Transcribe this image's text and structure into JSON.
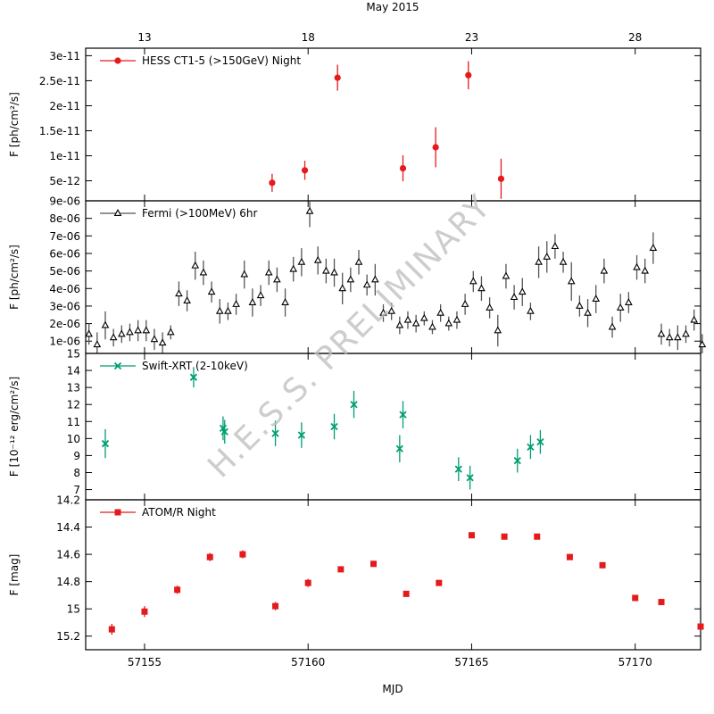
{
  "figure": {
    "top_title": "May 2015",
    "xlabel": "MJD",
    "x_range": [
      57153.2,
      57172.0
    ],
    "date_ticks": [
      {
        "mjd": 57155.0,
        "label": "13"
      },
      {
        "mjd": 57160.0,
        "label": "18"
      },
      {
        "mjd": 57165.0,
        "label": "23"
      },
      {
        "mjd": 57170.0,
        "label": "28"
      }
    ],
    "mjd_ticks": [
      {
        "mjd": 57155,
        "label": "57155"
      },
      {
        "mjd": 57160,
        "label": "57160"
      },
      {
        "mjd": 57165,
        "label": "57165"
      },
      {
        "mjd": 57170,
        "label": "57170"
      }
    ],
    "watermark": "H.E.S.S. PRELIMINARY"
  },
  "chart_data": [
    {
      "id": "hess",
      "type": "scatter",
      "legend": "HESS CT1-5 (>150GeV) Night",
      "ylabel": "F [ph/cm²/s]",
      "ylim": [
        1e-12,
        3.15e-11
      ],
      "yticks": [
        {
          "v": 5e-12,
          "label": "5e-12"
        },
        {
          "v": 1e-11,
          "label": "1e-11"
        },
        {
          "v": 1.5e-11,
          "label": "1.5e-11"
        },
        {
          "v": 2e-11,
          "label": "2e-11"
        },
        {
          "v": 2.5e-11,
          "label": "2.5e-11"
        },
        {
          "v": 3e-11,
          "label": "3e-11"
        }
      ],
      "color": "#e41a1c",
      "marker": "circle",
      "points": [
        {
          "x": 57158.9,
          "y": 4.6e-12,
          "err": 1.8e-12
        },
        {
          "x": 57159.9,
          "y": 7.1e-12,
          "err": 1.9e-12
        },
        {
          "x": 57160.9,
          "y": 2.56e-11,
          "err": 2.6e-12
        },
        {
          "x": 57162.9,
          "y": 7.5e-12,
          "err": 2.6e-12
        },
        {
          "x": 57163.9,
          "y": 1.17e-11,
          "err": 4e-12
        },
        {
          "x": 57164.9,
          "y": 2.61e-11,
          "err": 2.8e-12
        },
        {
          "x": 57165.9,
          "y": 5.4e-12,
          "err": 4e-12
        }
      ]
    },
    {
      "id": "fermi",
      "type": "scatter",
      "legend": "Fermi (>100MeV) 6hr",
      "ylabel": "F [ph/cm²/s]",
      "ylim": [
        3e-07,
        9e-06
      ],
      "yticks": [
        {
          "v": 1e-06,
          "label": "1e-06"
        },
        {
          "v": 2e-06,
          "label": "2e-06"
        },
        {
          "v": 3e-06,
          "label": "3e-06"
        },
        {
          "v": 4e-06,
          "label": "4e-06"
        },
        {
          "v": 5e-06,
          "label": "5e-06"
        },
        {
          "v": 6e-06,
          "label": "6e-06"
        },
        {
          "v": 7e-06,
          "label": "7e-06"
        },
        {
          "v": 8e-06,
          "label": "8e-06"
        },
        {
          "v": 9e-06,
          "label": "9e-06"
        }
      ],
      "color": "#000000",
      "marker": "triangle",
      "points": [
        {
          "x": 57153.3,
          "y": 1.4e-06,
          "err": 6e-07
        },
        {
          "x": 57153.55,
          "y": 8e-07,
          "err": 7e-07
        },
        {
          "x": 57153.8,
          "y": 1.9e-06,
          "err": 8e-07
        },
        {
          "x": 57154.05,
          "y": 1.2e-06,
          "err": 5e-07
        },
        {
          "x": 57154.3,
          "y": 1.4e-06,
          "err": 5e-07
        },
        {
          "x": 57154.55,
          "y": 1.5e-06,
          "err": 5e-07
        },
        {
          "x": 57154.8,
          "y": 1.6e-06,
          "err": 6e-07
        },
        {
          "x": 57155.05,
          "y": 1.6e-06,
          "err": 6e-07
        },
        {
          "x": 57155.3,
          "y": 1.1e-06,
          "err": 6e-07
        },
        {
          "x": 57155.55,
          "y": 9e-07,
          "err": 6e-07
        },
        {
          "x": 57155.8,
          "y": 1.5e-06,
          "err": 4e-07
        },
        {
          "x": 57156.05,
          "y": 3.7e-06,
          "err": 7e-07
        },
        {
          "x": 57156.3,
          "y": 3.3e-06,
          "err": 6e-07
        },
        {
          "x": 57156.55,
          "y": 5.3e-06,
          "err": 8e-07
        },
        {
          "x": 57156.8,
          "y": 4.9e-06,
          "err": 7e-07
        },
        {
          "x": 57157.05,
          "y": 3.8e-06,
          "err": 6e-07
        },
        {
          "x": 57157.3,
          "y": 2.7e-06,
          "err": 7e-07
        },
        {
          "x": 57157.55,
          "y": 2.7e-06,
          "err": 5e-07
        },
        {
          "x": 57157.8,
          "y": 3.1e-06,
          "err": 6e-07
        },
        {
          "x": 57158.05,
          "y": 4.8e-06,
          "err": 8e-07
        },
        {
          "x": 57158.3,
          "y": 3.2e-06,
          "err": 8e-07
        },
        {
          "x": 57158.55,
          "y": 3.6e-06,
          "err": 6e-07
        },
        {
          "x": 57158.8,
          "y": 4.9e-06,
          "err": 7e-07
        },
        {
          "x": 57159.05,
          "y": 4.5e-06,
          "err": 7e-07
        },
        {
          "x": 57159.3,
          "y": 3.2e-06,
          "err": 8e-07
        },
        {
          "x": 57159.55,
          "y": 5.1e-06,
          "err": 7e-07
        },
        {
          "x": 57159.8,
          "y": 5.5e-06,
          "err": 8e-07
        },
        {
          "x": 57160.05,
          "y": 8.4e-06,
          "err": 9e-07
        },
        {
          "x": 57160.3,
          "y": 5.6e-06,
          "err": 8e-07
        },
        {
          "x": 57160.55,
          "y": 5e-06,
          "err": 7e-07
        },
        {
          "x": 57160.8,
          "y": 4.9e-06,
          "err": 8e-07
        },
        {
          "x": 57161.05,
          "y": 4e-06,
          "err": 9e-07
        },
        {
          "x": 57161.3,
          "y": 4.5e-06,
          "err": 7e-07
        },
        {
          "x": 57161.55,
          "y": 5.5e-06,
          "err": 7e-07
        },
        {
          "x": 57161.8,
          "y": 4.2e-06,
          "err": 6e-07
        },
        {
          "x": 57162.05,
          "y": 4.5e-06,
          "err": 9e-07
        },
        {
          "x": 57162.3,
          "y": 2.6e-06,
          "err": 5e-07
        },
        {
          "x": 57162.55,
          "y": 2.7e-06,
          "err": 5e-07
        },
        {
          "x": 57162.8,
          "y": 1.9e-06,
          "err": 5e-07
        },
        {
          "x": 57163.05,
          "y": 2.2e-06,
          "err": 5e-07
        },
        {
          "x": 57163.3,
          "y": 2e-06,
          "err": 5e-07
        },
        {
          "x": 57163.55,
          "y": 2.3e-06,
          "err": 4e-07
        },
        {
          "x": 57163.8,
          "y": 1.8e-06,
          "err": 4e-07
        },
        {
          "x": 57164.05,
          "y": 2.6e-06,
          "err": 5e-07
        },
        {
          "x": 57164.3,
          "y": 2e-06,
          "err": 4e-07
        },
        {
          "x": 57164.55,
          "y": 2.2e-06,
          "err": 5e-07
        },
        {
          "x": 57164.8,
          "y": 3.1e-06,
          "err": 6e-07
        },
        {
          "x": 57165.05,
          "y": 4.4e-06,
          "err": 6e-07
        },
        {
          "x": 57165.3,
          "y": 4e-06,
          "err": 7e-07
        },
        {
          "x": 57165.55,
          "y": 2.9e-06,
          "err": 6e-07
        },
        {
          "x": 57165.8,
          "y": 1.6e-06,
          "err": 9e-07
        },
        {
          "x": 57166.05,
          "y": 4.7e-06,
          "err": 7e-07
        },
        {
          "x": 57166.3,
          "y": 3.5e-06,
          "err": 7e-07
        },
        {
          "x": 57166.55,
          "y": 3.8e-06,
          "err": 8e-07
        },
        {
          "x": 57166.8,
          "y": 2.7e-06,
          "err": 5e-07
        },
        {
          "x": 57167.05,
          "y": 5.5e-06,
          "err": 9e-07
        },
        {
          "x": 57167.3,
          "y": 5.8e-06,
          "err": 9e-07
        },
        {
          "x": 57167.55,
          "y": 6.4e-06,
          "err": 7e-07
        },
        {
          "x": 57167.8,
          "y": 5.5e-06,
          "err": 6e-07
        },
        {
          "x": 57168.05,
          "y": 4.4e-06,
          "err": 1.1e-06
        },
        {
          "x": 57168.3,
          "y": 3e-06,
          "err": 6e-07
        },
        {
          "x": 57168.55,
          "y": 2.6e-06,
          "err": 8e-07
        },
        {
          "x": 57168.8,
          "y": 3.4e-06,
          "err": 8e-07
        },
        {
          "x": 57169.05,
          "y": 5e-06,
          "err": 7e-07
        },
        {
          "x": 57169.3,
          "y": 1.8e-06,
          "err": 6e-07
        },
        {
          "x": 57169.55,
          "y": 2.9e-06,
          "err": 8e-07
        },
        {
          "x": 57169.8,
          "y": 3.2e-06,
          "err": 6e-07
        },
        {
          "x": 57170.05,
          "y": 5.2e-06,
          "err": 7e-07
        },
        {
          "x": 57170.3,
          "y": 5e-06,
          "err": 7e-07
        },
        {
          "x": 57170.55,
          "y": 6.3e-06,
          "err": 9e-07
        },
        {
          "x": 57170.8,
          "y": 1.4e-06,
          "err": 6e-07
        },
        {
          "x": 57171.05,
          "y": 1.2e-06,
          "err": 5e-07
        },
        {
          "x": 57171.3,
          "y": 1.2e-06,
          "err": 7e-07
        },
        {
          "x": 57171.55,
          "y": 1.4e-06,
          "err": 5e-07
        },
        {
          "x": 57171.8,
          "y": 2.2e-06,
          "err": 6e-07
        },
        {
          "x": 57172.05,
          "y": 8e-07,
          "err": 6e-07
        }
      ]
    },
    {
      "id": "swift",
      "type": "scatter",
      "legend": "Swift-XRT (2-10keV)",
      "ylabel": "F [10⁻¹² erg/cm²/s]",
      "ylim": [
        6.4,
        15.0
      ],
      "yticks": [
        {
          "v": 7,
          "label": "7"
        },
        {
          "v": 8,
          "label": "8"
        },
        {
          "v": 9,
          "label": "9"
        },
        {
          "v": 10,
          "label": "10"
        },
        {
          "v": 11,
          "label": "11"
        },
        {
          "v": 12,
          "label": "12"
        },
        {
          "v": 13,
          "label": "13"
        },
        {
          "v": 14,
          "label": "14"
        },
        {
          "v": 15,
          "label": "15"
        }
      ],
      "color": "#009e73",
      "marker": "cross",
      "points": [
        {
          "x": 57153.8,
          "y": 9.7,
          "err": 0.85
        },
        {
          "x": 57156.5,
          "y": 13.6,
          "err": 0.6
        },
        {
          "x": 57157.4,
          "y": 10.6,
          "err": 0.7
        },
        {
          "x": 57157.45,
          "y": 10.4,
          "err": 0.7
        },
        {
          "x": 57159.0,
          "y": 10.3,
          "err": 0.75
        },
        {
          "x": 57159.8,
          "y": 10.2,
          "err": 0.75
        },
        {
          "x": 57160.8,
          "y": 10.7,
          "err": 0.75
        },
        {
          "x": 57161.4,
          "y": 12.0,
          "err": 0.8
        },
        {
          "x": 57162.8,
          "y": 9.4,
          "err": 0.8
        },
        {
          "x": 57162.9,
          "y": 11.4,
          "err": 0.8
        },
        {
          "x": 57164.6,
          "y": 8.2,
          "err": 0.7
        },
        {
          "x": 57164.95,
          "y": 7.7,
          "err": 0.7
        },
        {
          "x": 57166.4,
          "y": 8.7,
          "err": 0.7
        },
        {
          "x": 57166.8,
          "y": 9.5,
          "err": 0.7
        },
        {
          "x": 57167.1,
          "y": 9.8,
          "err": 0.7
        }
      ]
    },
    {
      "id": "atom",
      "type": "scatter",
      "legend": "ATOM/R Night",
      "ylabel": "F [mag]",
      "ylim": [
        15.3,
        14.2
      ],
      "invert_y": true,
      "yticks": [
        {
          "v": 14.2,
          "label": "14.2"
        },
        {
          "v": 14.4,
          "label": "14.4"
        },
        {
          "v": 14.6,
          "label": "14.6"
        },
        {
          "v": 14.8,
          "label": "14.8"
        },
        {
          "v": 15.0,
          "label": "15"
        },
        {
          "v": 15.2,
          "label": "15.2"
        }
      ],
      "color": "#e41a1c",
      "marker": "square",
      "points": [
        {
          "x": 57154.0,
          "y": 15.15,
          "err": 0.04
        },
        {
          "x": 57155.0,
          "y": 15.02,
          "err": 0.04
        },
        {
          "x": 57156.0,
          "y": 14.86,
          "err": 0.03
        },
        {
          "x": 57157.0,
          "y": 14.62,
          "err": 0.03
        },
        {
          "x": 57158.0,
          "y": 14.6,
          "err": 0.03
        },
        {
          "x": 57159.0,
          "y": 14.98,
          "err": 0.03
        },
        {
          "x": 57160.0,
          "y": 14.81,
          "err": 0.03
        },
        {
          "x": 57161.0,
          "y": 14.71,
          "err": 0.015
        },
        {
          "x": 57162.0,
          "y": 14.67,
          "err": 0.015
        },
        {
          "x": 57163.0,
          "y": 14.89,
          "err": 0.015
        },
        {
          "x": 57164.0,
          "y": 14.81,
          "err": 0.015
        },
        {
          "x": 57165.0,
          "y": 14.46,
          "err": 0.015
        },
        {
          "x": 57166.0,
          "y": 14.47,
          "err": 0.015
        },
        {
          "x": 57167.0,
          "y": 14.47,
          "err": 0.015
        },
        {
          "x": 57168.0,
          "y": 14.62,
          "err": 0.015
        },
        {
          "x": 57169.0,
          "y": 14.68,
          "err": 0.015
        },
        {
          "x": 57170.0,
          "y": 14.92,
          "err": 0.015
        },
        {
          "x": 57170.8,
          "y": 14.95,
          "err": 0.015
        },
        {
          "x": 57172.0,
          "y": 15.13,
          "err": 0.015
        }
      ]
    }
  ]
}
